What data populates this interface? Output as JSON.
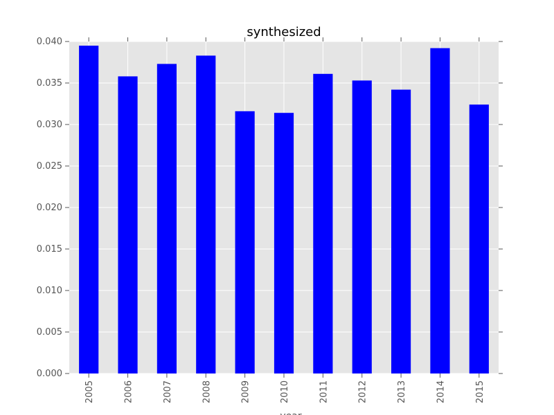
{
  "chart_data": {
    "type": "bar",
    "title": "synthesized",
    "xlabel": "year",
    "ylabel": "",
    "categories": [
      "2005",
      "2006",
      "2007",
      "2008",
      "2009",
      "2010",
      "2011",
      "2012",
      "2013",
      "2014",
      "2015"
    ],
    "values": [
      0.0395,
      0.0358,
      0.0373,
      0.0383,
      0.0316,
      0.0314,
      0.0361,
      0.0353,
      0.0342,
      0.0392,
      0.0324
    ],
    "ylim": [
      0,
      0.04
    ],
    "yticks": [
      "0.000",
      "0.005",
      "0.010",
      "0.015",
      "0.020",
      "0.025",
      "0.030",
      "0.035",
      "0.040"
    ],
    "grid": true,
    "legend": "none",
    "colors": {
      "bar": "#0000ff",
      "plot_background": "#e5e5e5",
      "grid": "#ffffff",
      "tick": "#555555"
    }
  }
}
